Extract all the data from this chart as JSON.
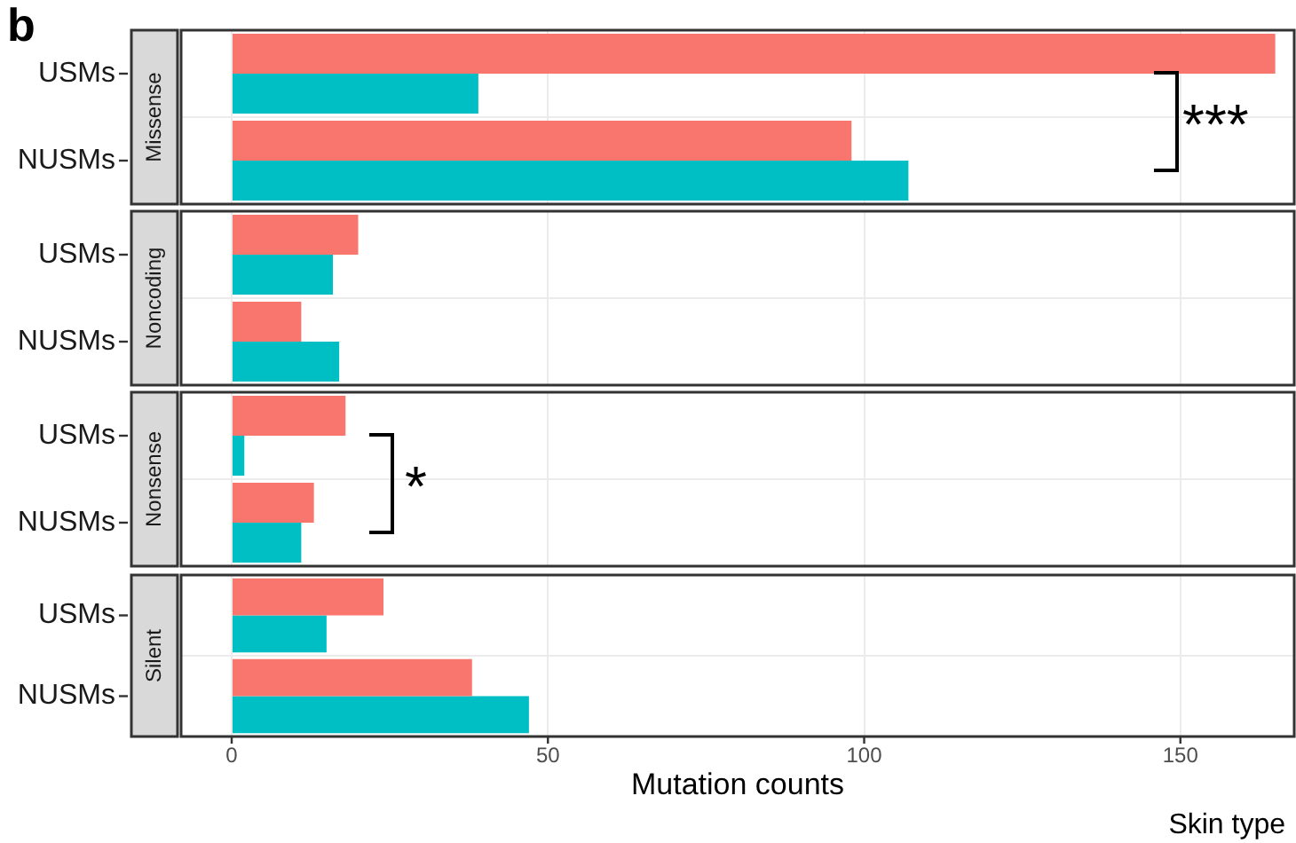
{
  "chart_data": [
    {
      "type": "bar",
      "orientation": "horizontal",
      "title": "Missense",
      "categories": [
        "USMs",
        "NUSMs"
      ],
      "series": [
        {
          "color": "#f8766d",
          "values": [
            165,
            98
          ]
        },
        {
          "color": "#00bfc4",
          "values": [
            39,
            107
          ]
        }
      ],
      "xlim": [
        -8,
        168
      ],
      "xticks": [
        0,
        50,
        100,
        150
      ],
      "tick_labels": "y",
      "grid": true,
      "legend": false,
      "annotations": [
        "b",
        "***"
      ]
    },
    {
      "type": "bar",
      "orientation": "horizontal",
      "title": "Noncoding",
      "categories": [
        "USMs",
        "NUSMs"
      ],
      "series": [
        {
          "color": "#f8766d",
          "values": [
            20,
            11
          ]
        },
        {
          "color": "#00bfc4",
          "values": [
            16,
            17
          ]
        }
      ],
      "xlim": [
        -8,
        168
      ],
      "xticks": [
        0,
        50,
        100,
        150
      ],
      "tick_labels": "y",
      "grid": true,
      "legend": false
    },
    {
      "type": "bar",
      "orientation": "horizontal",
      "title": "Nonsense",
      "categories": [
        "USMs",
        "NUSMs"
      ],
      "series": [
        {
          "color": "#f8766d",
          "values": [
            18,
            13
          ]
        },
        {
          "color": "#00bfc4",
          "values": [
            2,
            11
          ]
        }
      ],
      "xlim": [
        -8,
        168
      ],
      "xticks": [
        0,
        50,
        100,
        150
      ],
      "tick_labels": "y",
      "grid": true,
      "legend": false,
      "annotations": [
        "*"
      ]
    },
    {
      "type": "bar",
      "orientation": "horizontal",
      "title": "Silent",
      "categories": [
        "USMs",
        "NUSMs"
      ],
      "series": [
        {
          "color": "#f8766d",
          "values": [
            24,
            38
          ]
        },
        {
          "color": "#00bfc4",
          "values": [
            15,
            47
          ]
        }
      ],
      "xlim": [
        -8,
        168
      ],
      "xticks": [
        0,
        50,
        100,
        150
      ],
      "grid": true,
      "legend": false,
      "xlabel": "Mutation counts",
      "legend_title": "Skin type"
    }
  ]
}
